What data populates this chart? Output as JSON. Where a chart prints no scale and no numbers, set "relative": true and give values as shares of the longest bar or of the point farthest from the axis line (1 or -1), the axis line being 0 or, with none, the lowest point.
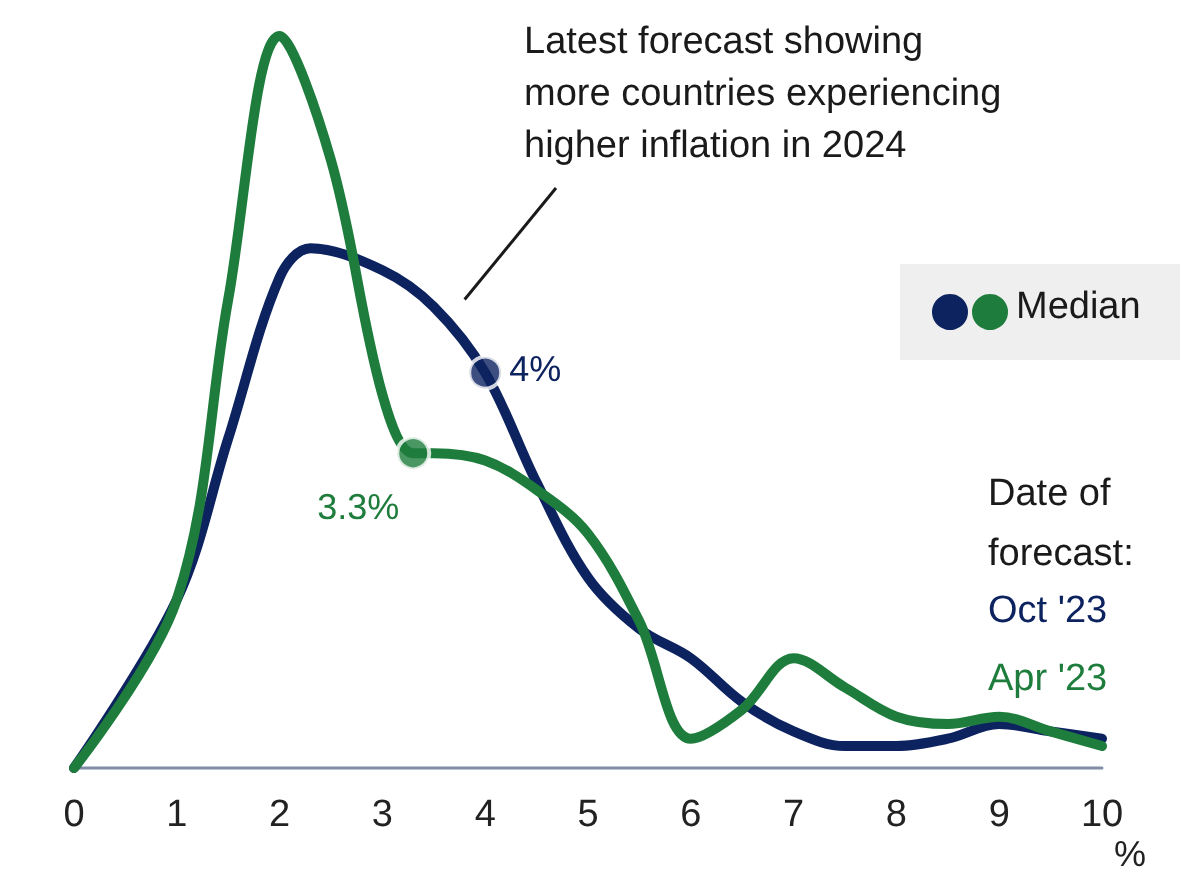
{
  "chart_data": {
    "type": "line",
    "relative": true,
    "xlabel": "%",
    "legend_title": "Date of forecast:",
    "legend": "right",
    "annotations": [
      "Latest forecast showing\nmore countries experiencing\nhigher inflation in 2024",
      {
        "text": "4%",
        "x": 4,
        "y": 0.54
      },
      {
        "text": "3.3%",
        "x": 3.3,
        "y": 0.43
      }
    ],
    "xlim": [
      0,
      10
    ],
    "xticks": [
      0,
      1,
      2,
      3,
      4,
      5,
      6,
      7,
      8,
      9,
      10
    ],
    "grid": false,
    "marker": "none",
    "series": [
      {
        "name": "Oct '23",
        "color": "#0d2360",
        "x": [
          0,
          1,
          1.5,
          2,
          2.3,
          3,
          3.5,
          4,
          4.5,
          5,
          5.5,
          6,
          6.5,
          7,
          7.5,
          8,
          8.5,
          9,
          9.5,
          10
        ],
        "values": [
          0,
          0.23,
          0.45,
          0.67,
          0.71,
          0.68,
          0.63,
          0.54,
          0.39,
          0.26,
          0.19,
          0.15,
          0.09,
          0.05,
          0.03,
          0.03,
          0.04,
          0.06,
          0.05,
          0.04
        ]
      },
      {
        "name": "Apr '23",
        "color": "#1e7d3c",
        "x": [
          0,
          1,
          1.5,
          2,
          2.5,
          3,
          3.3,
          3.5,
          4,
          4.5,
          5,
          5.5,
          6,
          6.5,
          7,
          7.5,
          8,
          8.5,
          9,
          9.5,
          10
        ],
        "values": [
          0,
          0.23,
          0.64,
          1,
          0.83,
          0.51,
          0.43,
          0.43,
          0.42,
          0.38,
          0.32,
          0.2,
          0.04,
          0.08,
          0.15,
          0.11,
          0.07,
          0.06,
          0.07,
          0.05,
          0.03
        ]
      },
      {
        "name": "Median",
        "type": "scatter",
        "marker": "circle",
        "x": [
          4,
          3.3
        ],
        "values": [
          0.54,
          0.43
        ],
        "colors": [
          "#0d2360",
          "#1e7d3c"
        ]
      }
    ]
  }
}
